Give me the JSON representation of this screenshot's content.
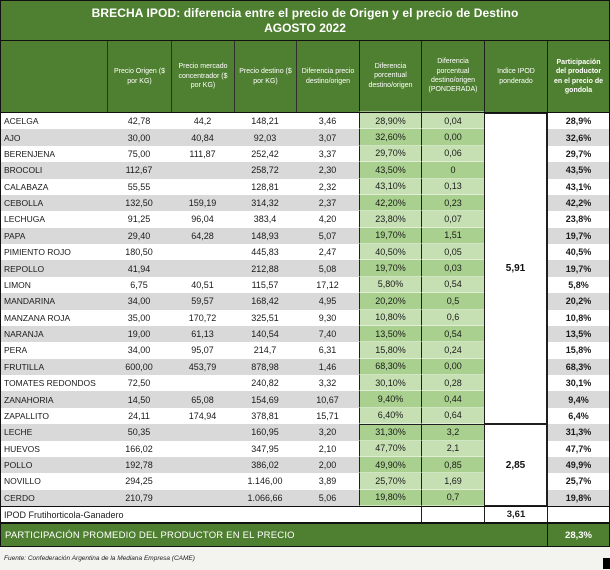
{
  "title": {
    "line1": "BRECHA IPOD: diferencia entre el precio de Origen y el precio de Destino",
    "line2": "AGOSTO 2022"
  },
  "colors": {
    "header_green": "#4f7f30",
    "light_green_cell": "#c6e0b4",
    "mid_green_cell": "#a9d08e",
    "stripe_gray": "#d9d9d9"
  },
  "table": {
    "columns": [
      {
        "key": "name",
        "label": ""
      },
      {
        "key": "origen",
        "label": "Precio Origen ($ por KG)"
      },
      {
        "key": "mercado",
        "label": "Precio mercado concentrador ($ por KG)"
      },
      {
        "key": "destino",
        "label": "Precio destino ($ por KG)"
      },
      {
        "key": "dif",
        "label": "Diferencia precio destino/origen"
      },
      {
        "key": "pct",
        "label": "Diferencia porcentual destino/origen"
      },
      {
        "key": "pond",
        "label": "Diferencia porcentual destino/origen (PONDERADA)"
      },
      {
        "key": "ipod",
        "label": "Indice IPOD ponderado"
      },
      {
        "key": "part",
        "label": "Participación del productor en el precio de gondola"
      }
    ],
    "rows": [
      {
        "name": "ACELGA",
        "origen": "42,78",
        "mercado": "44,2",
        "destino": "148,21",
        "dif": "3,46",
        "pct": "28,90%",
        "pond": "0,04",
        "part": "28,9%"
      },
      {
        "name": "AJO",
        "origen": "30,00",
        "mercado": "40,84",
        "destino": "92,03",
        "dif": "3,07",
        "pct": "32,60%",
        "pond": "0,00",
        "part": "32,6%"
      },
      {
        "name": "BERENJENA",
        "origen": "75,00",
        "mercado": "111,87",
        "destino": "252,42",
        "dif": "3,37",
        "pct": "29,70%",
        "pond": "0,06",
        "part": "29,7%"
      },
      {
        "name": "BROCOLI",
        "origen": "112,67",
        "mercado": "",
        "destino": "258,72",
        "dif": "2,30",
        "pct": "43,50%",
        "pond": "0",
        "part": "43,5%"
      },
      {
        "name": "CALABAZA",
        "origen": "55,55",
        "mercado": "",
        "destino": "128,81",
        "dif": "2,32",
        "pct": "43,10%",
        "pond": "0,13",
        "part": "43,1%"
      },
      {
        "name": "CEBOLLA",
        "origen": "132,50",
        "mercado": "159,19",
        "destino": "314,32",
        "dif": "2,37",
        "pct": "42,20%",
        "pond": "0,23",
        "part": "42,2%"
      },
      {
        "name": "LECHUGA",
        "origen": "91,25",
        "mercado": "96,04",
        "destino": "383,4",
        "dif": "4,20",
        "pct": "23,80%",
        "pond": "0,07",
        "part": "23,8%"
      },
      {
        "name": "PAPA",
        "origen": "29,40",
        "mercado": "64,28",
        "destino": "148,93",
        "dif": "5,07",
        "pct": "19,70%",
        "pond": "1,51",
        "part": "19,7%"
      },
      {
        "name": "PIMIENTO ROJO",
        "origen": "180,50",
        "mercado": "",
        "destino": "445,83",
        "dif": "2,47",
        "pct": "40,50%",
        "pond": "0,05",
        "part": "40,5%"
      },
      {
        "name": "REPOLLO",
        "origen": "41,94",
        "mercado": "",
        "destino": "212,88",
        "dif": "5,08",
        "pct": "19,70%",
        "pond": "0,03",
        "part": "19,7%"
      },
      {
        "name": "LIMON",
        "origen": "6,75",
        "mercado": "40,51",
        "destino": "115,57",
        "dif": "17,12",
        "pct": "5,80%",
        "pond": "0,54",
        "part": "5,8%"
      },
      {
        "name": "MANDARINA",
        "origen": "34,00",
        "mercado": "59,57",
        "destino": "168,42",
        "dif": "4,95",
        "pct": "20,20%",
        "pond": "0,5",
        "part": "20,2%"
      },
      {
        "name": "MANZANA ROJA",
        "origen": "35,00",
        "mercado": "170,72",
        "destino": "325,51",
        "dif": "9,30",
        "pct": "10,80%",
        "pond": "0,6",
        "part": "10,8%"
      },
      {
        "name": "NARANJA",
        "origen": "19,00",
        "mercado": "61,13",
        "destino": "140,54",
        "dif": "7,40",
        "pct": "13,50%",
        "pond": "0,54",
        "part": "13,5%"
      },
      {
        "name": "PERA",
        "origen": "34,00",
        "mercado": "95,07",
        "destino": "214,7",
        "dif": "6,31",
        "pct": "15,80%",
        "pond": "0,24",
        "part": "15,8%"
      },
      {
        "name": "FRUTILLA",
        "origen": "600,00",
        "mercado": "453,79",
        "destino": "878,98",
        "dif": "1,46",
        "pct": "68,30%",
        "pond": "0,00",
        "part": "68,3%"
      },
      {
        "name": "TOMATES REDONDOS",
        "origen": "72,50",
        "mercado": "",
        "destino": "240,82",
        "dif": "3,32",
        "pct": "30,10%",
        "pond": "0,28",
        "part": "30,1%"
      },
      {
        "name": "ZANAHORIA",
        "origen": "14,50",
        "mercado": "65,08",
        "destino": "154,69",
        "dif": "10,67",
        "pct": "9,40%",
        "pond": "0,44",
        "part": "9,4%"
      },
      {
        "name": "ZAPALLITO",
        "origen": "24,11",
        "mercado": "174,94",
        "destino": "378,81",
        "dif": "15,71",
        "pct": "6,40%",
        "pond": "0,64",
        "part": "6,4%"
      },
      {
        "name": "LECHE",
        "origen": "50,35",
        "mercado": "",
        "destino": "160,95",
        "dif": "3,20",
        "pct": "31,30%",
        "pond": "3,2",
        "part": "31,3%"
      },
      {
        "name": "HUEVOS",
        "origen": "166,02",
        "mercado": "",
        "destino": "347,95",
        "dif": "2,10",
        "pct": "47,70%",
        "pond": "2,1",
        "part": "47,7%"
      },
      {
        "name": "POLLO",
        "origen": "192,78",
        "mercado": "",
        "destino": "386,02",
        "dif": "2,00",
        "pct": "49,90%",
        "pond": "0,85",
        "part": "49,9%"
      },
      {
        "name": "NOVILLO",
        "origen": "294,25",
        "mercado": "",
        "destino": "1.146,00",
        "dif": "3,89",
        "pct": "25,70%",
        "pond": "1,69",
        "part": "25,7%"
      },
      {
        "name": "CERDO",
        "origen": "210,79",
        "mercado": "",
        "destino": "1.066,66",
        "dif": "5,06",
        "pct": "19,80%",
        "pond": "0,7",
        "part": "19,8%"
      }
    ],
    "ipod_groups": [
      {
        "value": "5,91",
        "row_span": 19
      },
      {
        "value": "2,85",
        "row_span": 5
      }
    ],
    "summary_row": {
      "label": "IPOD Frutihorticola-Ganadero",
      "value": "3,61"
    },
    "footer_band": {
      "label": "PARTICIPACIÓN PROMEDIO DEL PRODUCTOR EN EL PRECIO",
      "value": "28,3%"
    }
  },
  "source": "Fuente: Confederación Argentina de la Mediana Empresa (CAME)"
}
